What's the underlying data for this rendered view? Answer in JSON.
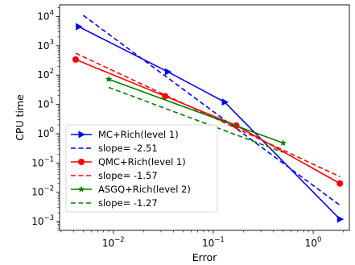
{
  "chart_data": {
    "type": "line",
    "xlabel": "Error",
    "ylabel": "CPU time",
    "xscale": "log",
    "yscale": "log",
    "xlim": [
      0.0029,
      2.3
    ],
    "ylim": [
      0.0005,
      25000
    ],
    "grid": false,
    "legend_position": "lower-left",
    "x_ticks": [
      {
        "value": 0.01,
        "mantissa": "10",
        "exp": "−2"
      },
      {
        "value": 0.1,
        "mantissa": "10",
        "exp": "−1"
      },
      {
        "value": 1,
        "mantissa": "10",
        "exp": "0"
      }
    ],
    "y_ticks": [
      {
        "value": 0.001,
        "mantissa": "10",
        "exp": "−3"
      },
      {
        "value": 0.01,
        "mantissa": "10",
        "exp": "−2"
      },
      {
        "value": 0.1,
        "mantissa": "10",
        "exp": "−1"
      },
      {
        "value": 1,
        "mantissa": "10",
        "exp": "0"
      },
      {
        "value": 10,
        "mantissa": "10",
        "exp": "1"
      },
      {
        "value": 100,
        "mantissa": "10",
        "exp": "2"
      },
      {
        "value": 1000,
        "mantissa": "10",
        "exp": "3"
      },
      {
        "value": 10000,
        "mantissa": "10",
        "exp": "4"
      }
    ],
    "series": [
      {
        "name": "MC+Rich(level 1)",
        "color": "#0000ff",
        "style": "solid",
        "marker": "triangle-right",
        "points": [
          [
            0.0045,
            4500
          ],
          [
            0.035,
            130
          ],
          [
            0.13,
            12
          ],
          [
            1.85,
            0.0012
          ]
        ]
      },
      {
        "name": "slope= -2.51",
        "color": "#0000ff",
        "style": "dashed",
        "marker": "none",
        "points": [
          [
            0.005,
            11000
          ],
          [
            1.85,
            0.0036
          ]
        ]
      },
      {
        "name": "QMC+Rich(level 1)",
        "color": "#ff0000",
        "style": "solid",
        "marker": "circle",
        "points": [
          [
            0.0042,
            340
          ],
          [
            0.033,
            19
          ],
          [
            0.17,
            1.9
          ],
          [
            1.85,
            0.02
          ]
        ]
      },
      {
        "name": "slope= -1.57",
        "color": "#ff0000",
        "style": "dashed",
        "marker": "none",
        "points": [
          [
            0.0042,
            560
          ],
          [
            1.85,
            0.034
          ]
        ]
      },
      {
        "name": "ASGQ+Rich(level 2)",
        "color": "#008000",
        "style": "solid",
        "marker": "star",
        "points": [
          [
            0.009,
            72
          ],
          [
            0.5,
            0.48
          ]
        ]
      },
      {
        "name": "slope= -1.27",
        "color": "#008000",
        "style": "dashed",
        "marker": "none",
        "points": [
          [
            0.009,
            38
          ],
          [
            0.5,
            0.23
          ]
        ]
      }
    ]
  }
}
